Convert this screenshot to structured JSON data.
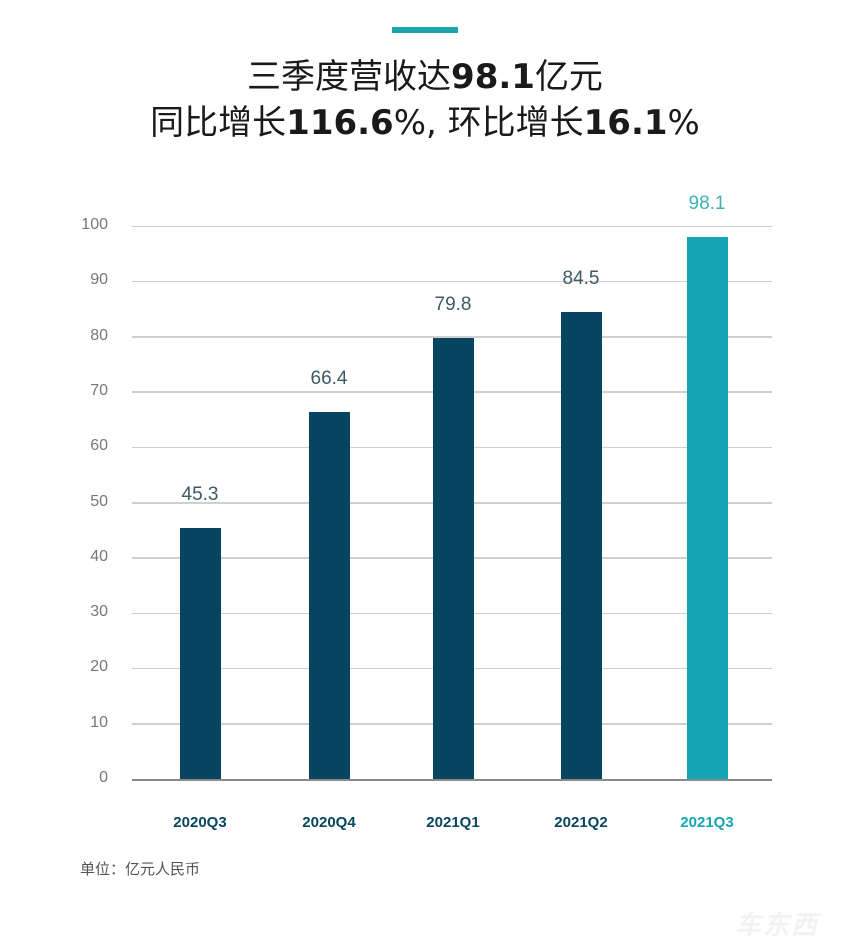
{
  "header": {
    "line1_pre": "三季度营收达",
    "line1_num": "98.1",
    "line1_post": "亿元",
    "line2_a": "同比增长",
    "line2_num1": "116.6",
    "line2_b": "%, 环比增长",
    "line2_num2": "16.1",
    "line2_c": "%"
  },
  "footer": {
    "unit": "单位：亿元人民币",
    "watermark": "车东西"
  },
  "colors": {
    "bar_default": "#074560",
    "bar_highlight": "#14a5b2",
    "accent": "#1aa6ad",
    "label_default": "#3d5a66",
    "label_highlight": "#3fb2b8"
  },
  "axis": {
    "ticks": [
      "0",
      "10",
      "20",
      "30",
      "40",
      "50",
      "60",
      "70",
      "80",
      "90",
      "100"
    ]
  },
  "chart_data": {
    "type": "bar",
    "title": "三季度营收达98.1亿元 同比增长116.6%，环比增长16.1%",
    "categories": [
      "2020Q3",
      "2020Q4",
      "2021Q1",
      "2021Q2",
      "2021Q3"
    ],
    "values": [
      45.3,
      66.4,
      79.8,
      84.5,
      98.1
    ],
    "value_labels": [
      "45.3",
      "66.4",
      "79.8",
      "84.5",
      "98.1"
    ],
    "highlight_index": 4,
    "xlabel": "",
    "ylabel": "",
    "unit": "单位：亿元人民币",
    "ylim": [
      0,
      100
    ],
    "yticks": [
      0,
      10,
      20,
      30,
      40,
      50,
      60,
      70,
      80,
      90,
      100
    ],
    "grid": true,
    "legend": null
  }
}
